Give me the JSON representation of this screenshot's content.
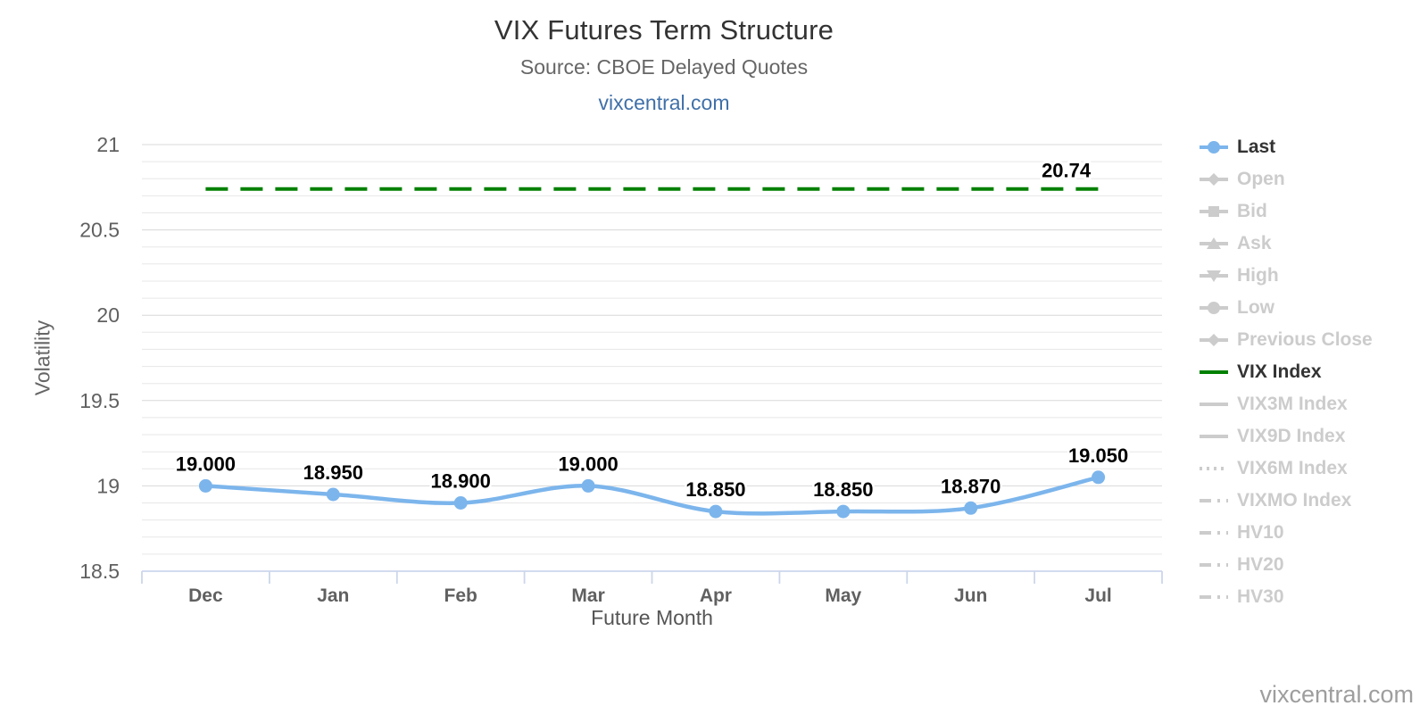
{
  "page": {
    "title": "VIX Futures Term Structure",
    "subtitle": "Source: CBOE Delayed Quotes",
    "link": "vixcentral.com",
    "watermark": "vixcentral.com"
  },
  "colors": {
    "series_blue": "#7cb5ec",
    "vix_green": "#008000",
    "link_blue": "#4070a8",
    "label_black": "#000000",
    "legend_enabled_text": "#333333",
    "legend_disabled": "#cccccc",
    "axis_line": "#ccd6eb",
    "grid_minor": "#e7e7e7",
    "grid_major": "#d8d8d8",
    "tick_text": "#606060",
    "watermark_gray": "#9e9e9e"
  },
  "chart_data": {
    "type": "line",
    "title": "VIX Futures Term Structure",
    "subtitle": "Source: CBOE Delayed Quotes",
    "xlabel": "Future Month",
    "ylabel": "Volatility",
    "categories": [
      "Dec",
      "Jan",
      "Feb",
      "Mar",
      "Apr",
      "May",
      "Jun",
      "Jul"
    ],
    "ylim": [
      18.5,
      21
    ],
    "y_ticks": [
      18.5,
      19,
      19.5,
      20,
      20.5,
      21
    ],
    "y_tick_labels": [
      "18.5",
      "19",
      "19.5",
      "20",
      "20.5",
      "21"
    ],
    "minor_tick_interval": 0.1,
    "grid": "on",
    "legend_position": "right",
    "series": [
      {
        "name": "Last",
        "type": "spline",
        "color": "#7cb5ec",
        "values": [
          19.0,
          18.95,
          18.9,
          19.0,
          18.85,
          18.85,
          18.87,
          19.05
        ],
        "labels": [
          "19.000",
          "18.950",
          "18.900",
          "19.000",
          "18.850",
          "18.850",
          "18.870",
          "19.050"
        ]
      },
      {
        "name": "VIX Index",
        "type": "horizontal-dashed-line",
        "color": "#008000",
        "value": 20.74,
        "label": "20.74"
      }
    ]
  },
  "legend": {
    "items": [
      {
        "label": "Last",
        "marker": "circle",
        "line": "solid",
        "color": "#7cb5ec",
        "enabled": true
      },
      {
        "label": "Open",
        "marker": "diamond",
        "line": "solid",
        "color": "#cccccc",
        "enabled": false
      },
      {
        "label": "Bid",
        "marker": "square",
        "line": "solid",
        "color": "#cccccc",
        "enabled": false
      },
      {
        "label": "Ask",
        "marker": "triangle-up",
        "line": "solid",
        "color": "#cccccc",
        "enabled": false
      },
      {
        "label": "High",
        "marker": "triangle-down",
        "line": "solid",
        "color": "#cccccc",
        "enabled": false
      },
      {
        "label": "Low",
        "marker": "circle",
        "line": "solid",
        "color": "#cccccc",
        "enabled": false
      },
      {
        "label": "Previous Close",
        "marker": "diamond",
        "line": "solid",
        "color": "#cccccc",
        "enabled": false
      },
      {
        "label": "VIX Index",
        "marker": "none",
        "line": "solid",
        "color": "#008000",
        "enabled": true
      },
      {
        "label": "VIX3M Index",
        "marker": "none",
        "line": "solid",
        "color": "#cccccc",
        "enabled": false
      },
      {
        "label": "VIX9D Index",
        "marker": "none",
        "line": "solid",
        "color": "#cccccc",
        "enabled": false
      },
      {
        "label": "VIX6M Index",
        "marker": "none",
        "line": "dotted",
        "color": "#cccccc",
        "enabled": false
      },
      {
        "label": "VIXMO Index",
        "marker": "none",
        "line": "dashdot",
        "color": "#cccccc",
        "enabled": false
      },
      {
        "label": "HV10",
        "marker": "none",
        "line": "dashdot",
        "color": "#cccccc",
        "enabled": false
      },
      {
        "label": "HV20",
        "marker": "none",
        "line": "dashdot",
        "color": "#cccccc",
        "enabled": false
      },
      {
        "label": "HV30",
        "marker": "none",
        "line": "dashdot",
        "color": "#cccccc",
        "enabled": false
      }
    ]
  }
}
